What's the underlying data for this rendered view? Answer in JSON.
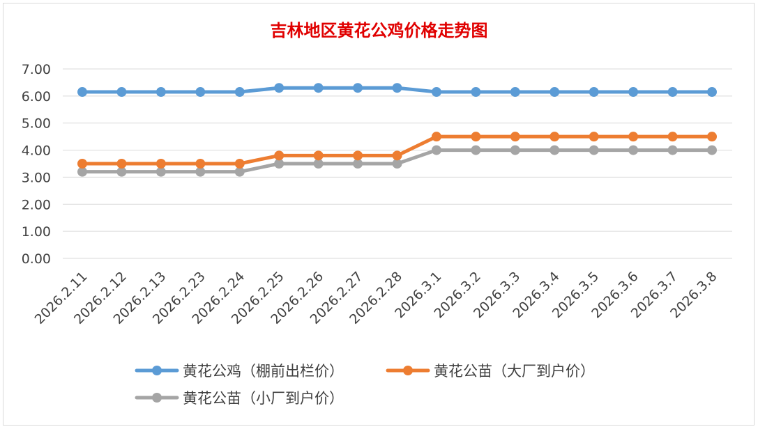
{
  "chart_data": {
    "type": "line",
    "title": "吉林地区黄花公鸡价格走势图",
    "xlabel": "",
    "ylabel": "",
    "ylim": [
      0,
      7
    ],
    "yticks": [
      "0.00",
      "1.00",
      "2.00",
      "3.00",
      "4.00",
      "5.00",
      "6.00",
      "7.00"
    ],
    "grid": "horizontal",
    "legend_position": "bottom",
    "categories": [
      "2026.2.11",
      "2026.2.12",
      "2026.2.13",
      "2026.2.23",
      "2026.2.24",
      "2026.2.25",
      "2026.2.26",
      "2026.2.27",
      "2026.2.28",
      "2026.3.1",
      "2026.3.2",
      "2026.3.3",
      "2026.3.4",
      "2026.3.5",
      "2026.3.6",
      "2026.3.7",
      "2026.3.8"
    ],
    "series": [
      {
        "name": "黄花公鸡（棚前出栏价）",
        "color": "#5b9bd5",
        "values": [
          6.15,
          6.15,
          6.15,
          6.15,
          6.15,
          6.3,
          6.3,
          6.3,
          6.3,
          6.15,
          6.15,
          6.15,
          6.15,
          6.15,
          6.15,
          6.15,
          6.15
        ]
      },
      {
        "name": "黄花公苗（大厂到户价）",
        "color": "#ed7d31",
        "values": [
          3.5,
          3.5,
          3.5,
          3.5,
          3.5,
          3.8,
          3.8,
          3.8,
          3.8,
          4.5,
          4.5,
          4.5,
          4.5,
          4.5,
          4.5,
          4.5,
          4.5
        ]
      },
      {
        "name": "黄花公苗（小厂到户价）",
        "color": "#a5a5a5",
        "values": [
          3.2,
          3.2,
          3.2,
          3.2,
          3.2,
          3.5,
          3.5,
          3.5,
          3.5,
          4.0,
          4.0,
          4.0,
          4.0,
          4.0,
          4.0,
          4.0,
          4.0
        ]
      }
    ]
  }
}
